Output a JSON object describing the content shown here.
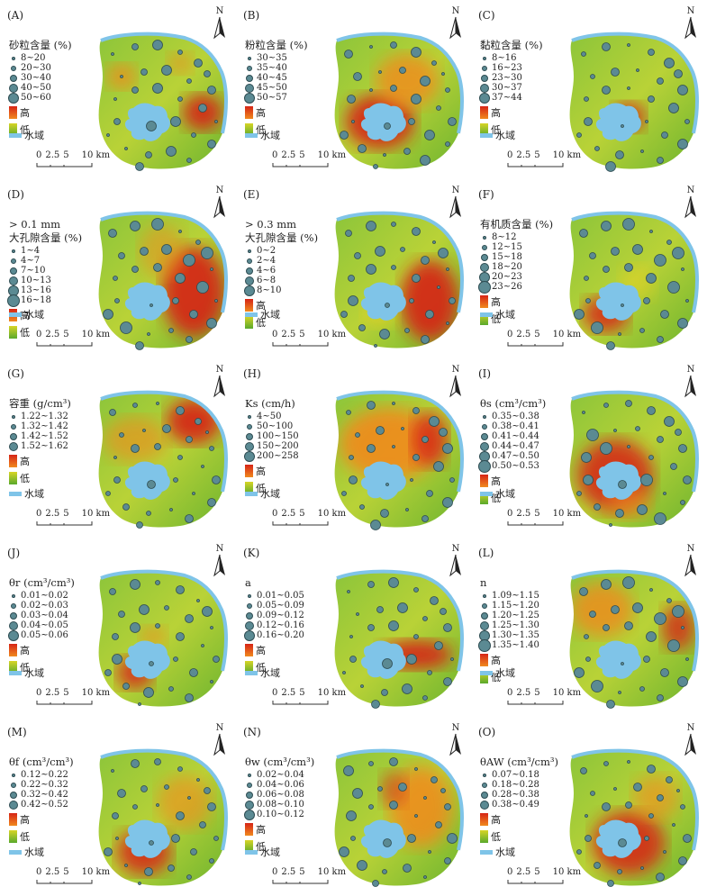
{
  "colors": {
    "water": "#7fc4e8",
    "high": "#d62416",
    "low": "#5aa92c",
    "point": "#5b8a93"
  },
  "common": {
    "high_label": "高",
    "low_label": "低",
    "water_label": "水域",
    "north_label": "N",
    "scale_nums": [
      "0",
      "2.5",
      "5",
      "10 km"
    ]
  },
  "panels": [
    {
      "id": "A",
      "label": "(A)",
      "title_lines": [
        "砂粒含量 (%)"
      ],
      "classes": [
        "8~20",
        "20~30",
        "30~40",
        "40~50",
        "50~60"
      ]
    },
    {
      "id": "B",
      "label": "(B)",
      "title_lines": [
        "粉粒含量 (%)"
      ],
      "classes": [
        "30~35",
        "35~40",
        "40~45",
        "45~50",
        "50~57"
      ]
    },
    {
      "id": "C",
      "label": "(C)",
      "title_lines": [
        "黏粒含量 (%)"
      ],
      "classes": [
        "8~16",
        "16~23",
        "23~30",
        "30~37",
        "37~44"
      ]
    },
    {
      "id": "D",
      "label": "(D)",
      "title_lines": [
        "> 0.1 mm",
        "大孔隙含量 (%)"
      ],
      "classes": [
        "1~4",
        "4~7",
        "7~10",
        "10~13",
        "13~16",
        "16~18"
      ]
    },
    {
      "id": "E",
      "label": "(E)",
      "title_lines": [
        "> 0.3 mm",
        "大孔隙含量 (%)"
      ],
      "classes": [
        "0~2",
        "2~4",
        "4~6",
        "6~8",
        "8~10"
      ]
    },
    {
      "id": "F",
      "label": "(F)",
      "title_lines": [
        "有机质含量 (%)"
      ],
      "classes": [
        "8~12",
        "12~15",
        "15~18",
        "18~20",
        "20~23",
        "23~26"
      ]
    },
    {
      "id": "G",
      "label": "(G)",
      "title_lines": [
        "容重 (g/cm³)"
      ],
      "classes": [
        "1.22~1.32",
        "1.32~1.42",
        "1.42~1.52",
        "1.52~1.62"
      ]
    },
    {
      "id": "H",
      "label": "(H)",
      "title_lines": [
        "Ks (cm/h)"
      ],
      "classes": [
        "4~50",
        "50~100",
        "100~150",
        "150~200",
        "200~258"
      ]
    },
    {
      "id": "I",
      "label": "(I)",
      "title_lines": [
        "θs (cm³/cm³)"
      ],
      "classes": [
        "0.35~0.38",
        "0.38~0.41",
        "0.41~0.44",
        "0.44~0.47",
        "0.47~0.50",
        "0.50~0.53"
      ]
    },
    {
      "id": "J",
      "label": "(J)",
      "title_lines": [
        "θr (cm³/cm³)"
      ],
      "classes": [
        "0.01~0.02",
        "0.02~0.03",
        "0.03~0.04",
        "0.04~0.05",
        "0.05~0.06"
      ]
    },
    {
      "id": "K",
      "label": "(K)",
      "title_lines": [
        "a"
      ],
      "classes": [
        "0.01~0.05",
        "0.05~0.09",
        "0.09~0.12",
        "0.12~0.16",
        "0.16~0.20"
      ]
    },
    {
      "id": "L",
      "label": "(L)",
      "title_lines": [
        "n"
      ],
      "classes": [
        "1.09~1.15",
        "1.15~1.20",
        "1.20~1.25",
        "1.25~1.30",
        "1.30~1.35",
        "1.35~1.40"
      ]
    },
    {
      "id": "M",
      "label": "(M)",
      "title_lines": [
        "θf (cm³/cm³)"
      ],
      "classes": [
        "0.12~0.22",
        "0.22~0.32",
        "0.32~0.42",
        "0.42~0.52"
      ]
    },
    {
      "id": "N",
      "label": "(N)",
      "title_lines": [
        "θw (cm³/cm³)"
      ],
      "classes": [
        "0.02~0.04",
        "0.04~0.06",
        "0.06~0.08",
        "0.08~0.10",
        "0.10~0.12"
      ]
    },
    {
      "id": "O",
      "label": "(O)",
      "title_lines": [
        "θAW (cm³/cm³)"
      ],
      "classes": [
        "0.07~0.18",
        "0.18~0.28",
        "0.28~0.38",
        "0.38~0.49"
      ]
    }
  ]
}
